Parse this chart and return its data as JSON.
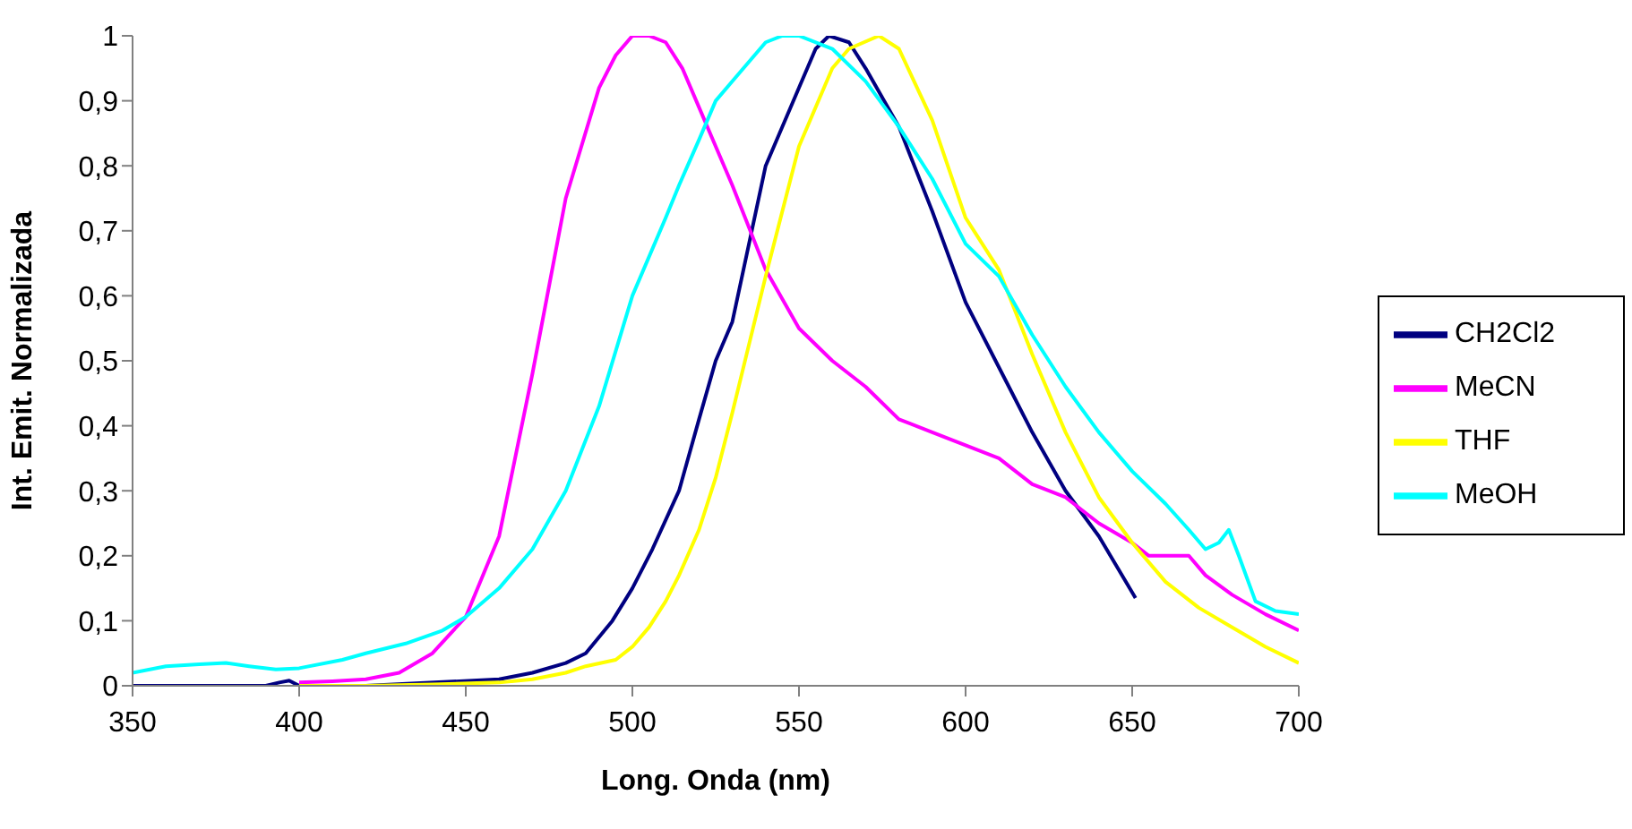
{
  "chart_data": {
    "type": "line",
    "xlabel": "Long. Onda (nm)",
    "ylabel": "Int. Emit. Normalizada",
    "xlim": [
      350,
      700
    ],
    "xticks": [
      350,
      400,
      450,
      500,
      550,
      600,
      650,
      700
    ],
    "ylim": [
      0,
      1
    ],
    "yticks": [
      0,
      {
        "value": 0.1,
        "label": "0,1"
      },
      {
        "value": 0.2,
        "label": "0,2"
      },
      {
        "value": 0.3,
        "label": "0,3"
      },
      {
        "value": 0.4,
        "label": "0,4"
      },
      {
        "value": 0.5,
        "label": "0,5"
      },
      {
        "value": 0.6,
        "label": "0,6"
      },
      {
        "value": 0.7,
        "label": "0,7"
      },
      {
        "value": 0.8,
        "label": "0,8"
      },
      {
        "value": 0.9,
        "label": "0,9"
      },
      1
    ],
    "grid": false,
    "legend": "right",
    "marker": "none",
    "line_style": "solid",
    "series": [
      {
        "name": "CH2Cl2",
        "color": "#000080",
        "x": [
          350,
          370,
          390,
          394,
          397,
          400,
          420,
          460,
          470,
          480,
          486,
          494,
          500,
          506,
          514,
          520,
          525,
          530,
          540,
          550,
          555,
          559,
          565,
          570,
          580,
          590,
          600,
          610,
          620,
          630,
          640,
          651
        ],
        "values": [
          0,
          0,
          0,
          0.005,
          0.008,
          0,
          0,
          0.01,
          0.02,
          0.035,
          0.05,
          0.1,
          0.15,
          0.21,
          0.3,
          0.41,
          0.5,
          0.56,
          0.8,
          0.92,
          0.98,
          1,
          0.99,
          0.95,
          0.86,
          0.73,
          0.59,
          0.49,
          0.39,
          0.3,
          0.23,
          0.135
        ]
      },
      {
        "name": "MeCN",
        "color": "#ff00ff",
        "x": [
          400,
          410,
          420,
          430,
          440,
          450,
          460,
          470,
          480,
          490,
          495,
          500,
          505,
          510,
          515,
          520,
          525,
          530,
          540,
          550,
          560,
          570,
          580,
          590,
          600,
          610,
          620,
          630,
          640,
          650,
          655,
          662,
          667,
          672,
          680,
          690,
          700
        ],
        "values": [
          0.005,
          0.007,
          0.01,
          0.02,
          0.05,
          0.106,
          0.23,
          0.48,
          0.75,
          0.92,
          0.97,
          1,
          1,
          0.99,
          0.95,
          0.89,
          0.83,
          0.77,
          0.64,
          0.55,
          0.5,
          0.46,
          0.41,
          0.39,
          0.37,
          0.35,
          0.31,
          0.29,
          0.25,
          0.22,
          0.2,
          0.2,
          0.2,
          0.17,
          0.14,
          0.11,
          0.085
        ]
      },
      {
        "name": "THF",
        "color": "#ffff00",
        "x": [
          400,
          420,
          440,
          460,
          470,
          480,
          486,
          495,
          500,
          505,
          510,
          514,
          520,
          525,
          530,
          540,
          550,
          560,
          565,
          574,
          580,
          590,
          600,
          610,
          620,
          630,
          640,
          650,
          660,
          670,
          680,
          690,
          700
        ],
        "values": [
          0,
          0,
          0.002,
          0.005,
          0.01,
          0.02,
          0.03,
          0.04,
          0.06,
          0.09,
          0.13,
          0.17,
          0.24,
          0.32,
          0.42,
          0.63,
          0.83,
          0.95,
          0.98,
          1,
          0.98,
          0.87,
          0.72,
          0.64,
          0.51,
          0.39,
          0.29,
          0.22,
          0.16,
          0.12,
          0.09,
          0.06,
          0.035
        ]
      },
      {
        "name": "MeOH",
        "color": "#00ffff",
        "x": [
          350,
          360,
          370,
          378,
          385,
          393,
          400,
          413,
          420,
          432,
          443,
          450,
          460,
          470,
          480,
          490,
          500,
          510,
          514,
          520,
          525,
          530,
          540,
          545,
          550,
          560,
          570,
          580,
          590,
          600,
          610,
          620,
          630,
          640,
          650,
          660,
          667,
          672,
          676,
          679,
          682,
          687,
          693,
          700
        ],
        "values": [
          0.02,
          0.03,
          0.033,
          0.035,
          0.03,
          0.025,
          0.027,
          0.04,
          0.05,
          0.065,
          0.085,
          0.106,
          0.15,
          0.21,
          0.3,
          0.43,
          0.6,
          0.72,
          0.77,
          0.84,
          0.9,
          0.93,
          0.99,
          1,
          1,
          0.98,
          0.93,
          0.86,
          0.78,
          0.68,
          0.63,
          0.54,
          0.46,
          0.39,
          0.33,
          0.28,
          0.24,
          0.21,
          0.22,
          0.24,
          0.2,
          0.13,
          0.115,
          0.11
        ]
      }
    ]
  }
}
